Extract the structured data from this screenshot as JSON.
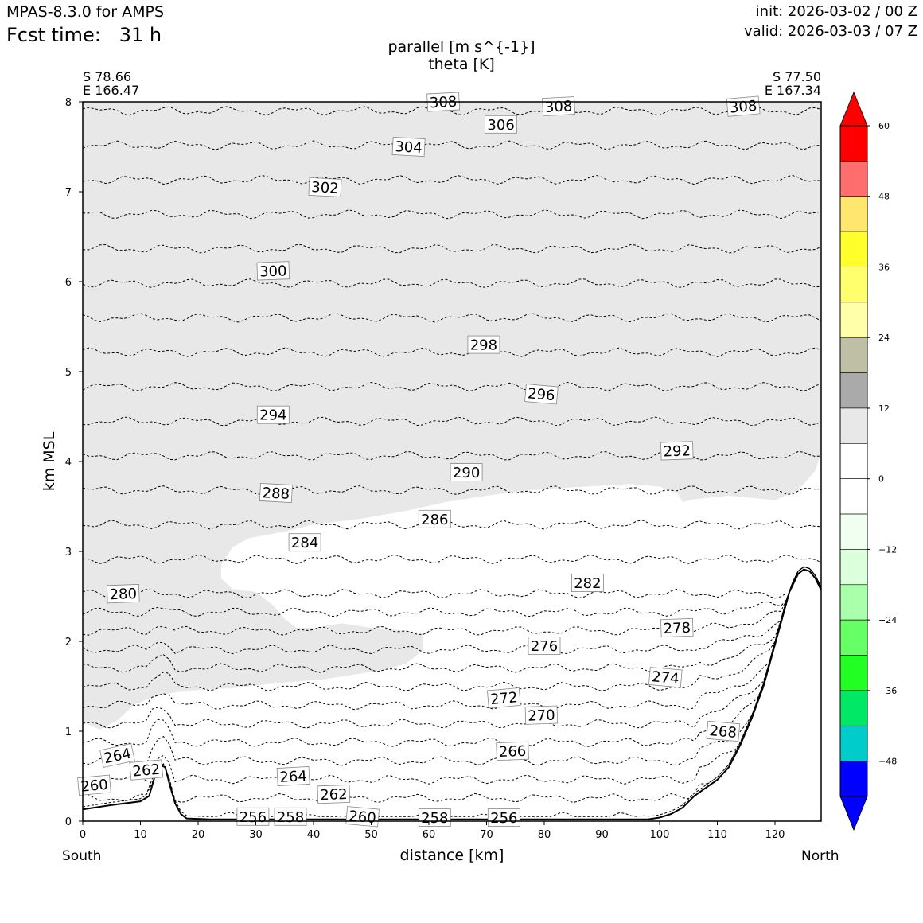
{
  "header": {
    "model": "MPAS-8.3.0 for AMPS",
    "fcst_time": "Fcst time:   31 h",
    "init": "init: 2026-03-02 / 00 Z",
    "valid": "valid: 2026-03-03 / 07 Z"
  },
  "chart_data": {
    "type": "cross-section",
    "title_line1": "parallel [m s^{-1}]",
    "title_line2": "theta [K]",
    "xlabel": "distance [km]",
    "ylabel": "km MSL",
    "xlim": [
      0,
      128
    ],
    "ylim": [
      0,
      8
    ],
    "xticks": [
      0,
      10,
      20,
      30,
      40,
      50,
      60,
      70,
      80,
      90,
      100,
      110,
      120
    ],
    "yticks": [
      0,
      1,
      2,
      3,
      4,
      5,
      6,
      7,
      8
    ],
    "endpoints": {
      "left": {
        "lat": "S 78.66",
        "lon": "E 166.47",
        "dir": "South"
      },
      "right": {
        "lat": "S 77.50",
        "lon": "E 167.34",
        "dir": "North"
      }
    },
    "theta_contours_K": [
      256,
      258,
      260,
      262,
      264,
      266,
      268,
      270,
      272,
      274,
      276,
      278,
      280,
      282,
      284,
      286,
      288,
      290,
      292,
      294,
      296,
      298,
      300,
      302,
      304,
      306,
      308
    ],
    "contour_labels": [
      {
        "value": "308",
        "x": 62.5,
        "y": 8.0,
        "rot": -3
      },
      {
        "value": "308",
        "x": 82.5,
        "y": 7.95,
        "rot": -3
      },
      {
        "value": "308",
        "x": 114.5,
        "y": 7.95,
        "rot": -5
      },
      {
        "value": "306",
        "x": 72.5,
        "y": 7.75,
        "rot": 0
      },
      {
        "value": "304",
        "x": 56.5,
        "y": 7.5,
        "rot": 3
      },
      {
        "value": "302",
        "x": 42.0,
        "y": 7.05,
        "rot": 3
      },
      {
        "value": "300",
        "x": 33.0,
        "y": 6.12,
        "rot": -2
      },
      {
        "value": "298",
        "x": 69.5,
        "y": 5.3,
        "rot": 0
      },
      {
        "value": "296",
        "x": 79.5,
        "y": 4.75,
        "rot": 5
      },
      {
        "value": "294",
        "x": 33.0,
        "y": 4.52,
        "rot": 0
      },
      {
        "value": "292",
        "x": 103.0,
        "y": 4.12,
        "rot": -2
      },
      {
        "value": "290",
        "x": 66.5,
        "y": 3.88,
        "rot": 0
      },
      {
        "value": "288",
        "x": 33.5,
        "y": 3.65,
        "rot": 3
      },
      {
        "value": "286",
        "x": 61.0,
        "y": 3.36,
        "rot": 0
      },
      {
        "value": "284",
        "x": 38.5,
        "y": 3.1,
        "rot": 0
      },
      {
        "value": "282",
        "x": 87.5,
        "y": 2.65,
        "rot": 0
      },
      {
        "value": "280",
        "x": 7.0,
        "y": 2.53,
        "rot": -2
      },
      {
        "value": "278",
        "x": 103.0,
        "y": 2.15,
        "rot": -2
      },
      {
        "value": "276",
        "x": 80.0,
        "y": 1.95,
        "rot": 0
      },
      {
        "value": "274",
        "x": 101.0,
        "y": 1.6,
        "rot": 5
      },
      {
        "value": "272",
        "x": 73.0,
        "y": 1.37,
        "rot": -5
      },
      {
        "value": "270",
        "x": 79.5,
        "y": 1.18,
        "rot": -2
      },
      {
        "value": "268",
        "x": 111.0,
        "y": 1.0,
        "rot": 5
      },
      {
        "value": "266",
        "x": 74.5,
        "y": 0.78,
        "rot": -2
      },
      {
        "value": "264",
        "x": 6.0,
        "y": 0.73,
        "rot": -12
      },
      {
        "value": "262",
        "x": 11.0,
        "y": 0.57,
        "rot": -5
      },
      {
        "value": "264",
        "x": 36.5,
        "y": 0.5,
        "rot": -3
      },
      {
        "value": "262",
        "x": 43.5,
        "y": 0.3,
        "rot": -2
      },
      {
        "value": "260",
        "x": 2.0,
        "y": 0.4,
        "rot": -5
      },
      {
        "value": "256",
        "x": 29.5,
        "y": 0.05,
        "rot": 0
      },
      {
        "value": "258",
        "x": 36.0,
        "y": 0.05,
        "rot": 0
      },
      {
        "value": "260",
        "x": 48.5,
        "y": 0.05,
        "rot": 5
      },
      {
        "value": "258",
        "x": 61.0,
        "y": 0.04,
        "rot": 0
      },
      {
        "value": "256",
        "x": 73.0,
        "y": 0.04,
        "rot": 0
      }
    ],
    "terrain_km": [
      [
        0,
        0.13
      ],
      [
        5,
        0.18
      ],
      [
        10,
        0.22
      ],
      [
        11.5,
        0.28
      ],
      [
        12.5,
        0.5
      ],
      [
        13.5,
        0.62
      ],
      [
        14.3,
        0.6
      ],
      [
        15,
        0.42
      ],
      [
        16,
        0.2
      ],
      [
        17,
        0.08
      ],
      [
        18,
        0.03
      ],
      [
        22,
        0.02
      ],
      [
        30,
        0.02
      ],
      [
        60,
        0.02
      ],
      [
        80,
        0.02
      ],
      [
        98,
        0.02
      ],
      [
        100,
        0.04
      ],
      [
        102,
        0.08
      ],
      [
        104,
        0.15
      ],
      [
        106,
        0.28
      ],
      [
        108,
        0.37
      ],
      [
        110,
        0.46
      ],
      [
        112,
        0.6
      ],
      [
        114,
        0.85
      ],
      [
        116,
        1.15
      ],
      [
        118,
        1.5
      ],
      [
        119.5,
        1.85
      ],
      [
        121,
        2.2
      ],
      [
        122.5,
        2.55
      ],
      [
        124,
        2.75
      ],
      [
        125,
        2.8
      ],
      [
        126,
        2.78
      ],
      [
        127,
        2.7
      ],
      [
        128,
        2.57
      ]
    ],
    "shaded_region_boundary_km": [
      [
        0,
        1.1
      ],
      [
        3,
        1.02
      ],
      [
        6,
        1.12
      ],
      [
        9,
        1.3
      ],
      [
        13,
        1.4
      ],
      [
        18,
        1.45
      ],
      [
        26,
        1.48
      ],
      [
        33,
        1.53
      ],
      [
        42,
        1.58
      ],
      [
        52,
        1.68
      ],
      [
        56,
        1.75
      ],
      [
        59,
        1.9
      ],
      [
        59,
        2.08
      ],
      [
        56,
        2.12
      ],
      [
        50,
        2.15
      ],
      [
        45,
        2.2
      ],
      [
        40,
        2.15
      ],
      [
        37,
        2.15
      ],
      [
        35,
        2.25
      ],
      [
        33,
        2.4
      ],
      [
        30,
        2.55
      ],
      [
        26,
        2.58
      ],
      [
        24,
        2.7
      ],
      [
        24,
        2.85
      ],
      [
        26,
        3.05
      ],
      [
        29,
        3.15
      ],
      [
        35,
        3.22
      ],
      [
        40,
        3.3
      ],
      [
        48,
        3.36
      ],
      [
        56,
        3.45
      ],
      [
        63,
        3.55
      ],
      [
        70,
        3.62
      ],
      [
        77,
        3.68
      ],
      [
        84,
        3.71
      ],
      [
        90,
        3.73
      ],
      [
        95,
        3.75
      ],
      [
        100,
        3.72
      ],
      [
        103,
        3.65
      ],
      [
        104,
        3.55
      ],
      [
        106,
        3.58
      ],
      [
        112,
        3.62
      ],
      [
        120,
        3.57
      ],
      [
        124,
        3.68
      ],
      [
        127,
        3.9
      ],
      [
        128,
        4.1
      ]
    ],
    "colorbar": {
      "label_ticks": [
        "60",
        "48",
        "36",
        "24",
        "12",
        "0",
        "−12",
        "−24",
        "−36",
        "−48"
      ],
      "tick_values": [
        60,
        48,
        36,
        24,
        12,
        0,
        -12,
        -24,
        -36,
        -48
      ],
      "bins_top_to_bottom": [
        {
          "lo": 54,
          "hi": 60,
          "color": "#ff0000"
        },
        {
          "lo": 48,
          "hi": 54,
          "color": "#ff6e6e"
        },
        {
          "lo": 42,
          "hi": 48,
          "color": "#ffe66e"
        },
        {
          "lo": 36,
          "hi": 42,
          "color": "#ffff2b"
        },
        {
          "lo": 30,
          "hi": 36,
          "color": "#ffff6e"
        },
        {
          "lo": 24,
          "hi": 30,
          "color": "#ffffaa"
        },
        {
          "lo": 18,
          "hi": 24,
          "color": "#bfbfa6"
        },
        {
          "lo": 12,
          "hi": 18,
          "color": "#aaaaaa"
        },
        {
          "lo": 6,
          "hi": 12,
          "color": "#e8e8e8"
        },
        {
          "lo": 0,
          "hi": 6,
          "color": "#ffffff"
        },
        {
          "lo": -6,
          "hi": 0,
          "color": "#ffffff"
        },
        {
          "lo": -12,
          "hi": -6,
          "color": "#f0fff0"
        },
        {
          "lo": -18,
          "hi": -12,
          "color": "#dcffdc"
        },
        {
          "lo": -24,
          "hi": -18,
          "color": "#aaffaa"
        },
        {
          "lo": -30,
          "hi": -24,
          "color": "#66ff66"
        },
        {
          "lo": -36,
          "hi": -30,
          "color": "#22ff22"
        },
        {
          "lo": -42,
          "hi": -36,
          "color": "#00e866"
        },
        {
          "lo": -48,
          "hi": -42,
          "color": "#00cccc"
        },
        {
          "lo": -54,
          "hi": -48,
          "color": "#0000ff"
        }
      ],
      "over_color": "#ff0000",
      "under_color": "#0000ff"
    }
  }
}
